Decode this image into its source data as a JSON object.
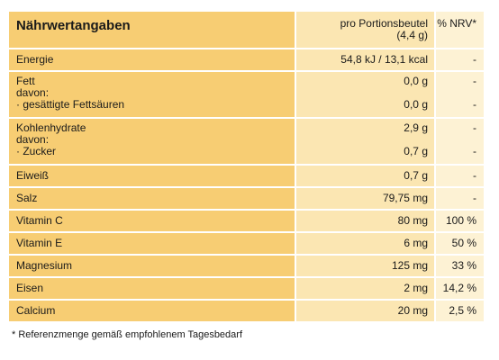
{
  "header": {
    "title": "Nährwertangaben",
    "portion_line1": "pro Portionsbeutel",
    "portion_line2": "(4,4 g)",
    "nrv": "% NRV*"
  },
  "rows": [
    {
      "label": "Energie",
      "value": "54,8 kJ / 13,1 kcal",
      "nrv": "-"
    },
    {
      "label": "Fett",
      "sub_intro": "davon:",
      "sub_label": "· gesättigte Fettsäuren",
      "value": "0,0 g",
      "sub_value": "0,0 g",
      "nrv": "-",
      "sub_nrv": "-"
    },
    {
      "label": "Kohlenhydrate",
      "sub_intro": "davon:",
      "sub_label": "· Zucker",
      "value": "2,9 g",
      "sub_value": "0,7 g",
      "nrv": "-",
      "sub_nrv": "-"
    },
    {
      "label": "Eiweiß",
      "value": "0,7 g",
      "nrv": "-"
    },
    {
      "label": "Salz",
      "value": "79,75 mg",
      "nrv": "-"
    },
    {
      "label": "Vitamin C",
      "value": "80 mg",
      "nrv": "100 %"
    },
    {
      "label": "Vitamin E",
      "value": "6 mg",
      "nrv": "50 %"
    },
    {
      "label": "Magnesium",
      "value": "125 mg",
      "nrv": "33 %"
    },
    {
      "label": "Eisen",
      "value": "2 mg",
      "nrv": "14,2 %"
    },
    {
      "label": "Calcium",
      "value": "20 mg",
      "nrv": "2,5 %"
    }
  ],
  "footnote": "* Referenzmenge gemäß empfohlenem Tagesbedarf",
  "colors": {
    "label_column": "#f7cd73",
    "value_column": "#fbe6b2",
    "nrv_column": "#fdf2d4"
  }
}
